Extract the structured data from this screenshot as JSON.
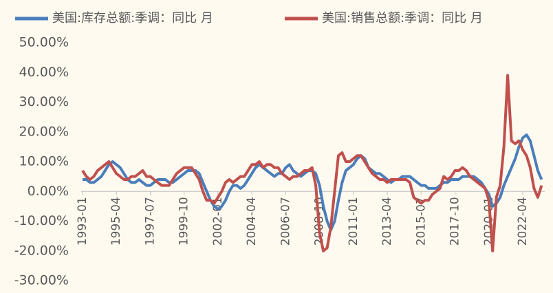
{
  "chart_data": {
    "type": "line",
    "x": [
      "1993-01",
      "1993-04",
      "1993-07",
      "1993-10",
      "1994-01",
      "1994-04",
      "1994-07",
      "1994-10",
      "1995-01",
      "1995-04",
      "1995-07",
      "1995-10",
      "1996-01",
      "1996-04",
      "1996-07",
      "1996-10",
      "1997-01",
      "1997-04",
      "1997-07",
      "1997-10",
      "1998-01",
      "1998-04",
      "1998-07",
      "1998-10",
      "1999-01",
      "1999-04",
      "1999-07",
      "1999-10",
      "2000-01",
      "2000-04",
      "2000-07",
      "2000-10",
      "2001-01",
      "2001-04",
      "2001-07",
      "2001-10",
      "2002-01",
      "2002-04",
      "2002-07",
      "2002-10",
      "2003-01",
      "2003-04",
      "2003-07",
      "2003-10",
      "2004-01",
      "2004-04",
      "2004-07",
      "2004-10",
      "2005-01",
      "2005-04",
      "2005-07",
      "2005-10",
      "2006-01",
      "2006-04",
      "2006-07",
      "2006-10",
      "2007-01",
      "2007-04",
      "2007-07",
      "2007-10",
      "2008-01",
      "2008-04",
      "2008-07",
      "2008-10",
      "2009-01",
      "2009-04",
      "2009-07",
      "2009-10",
      "2010-01",
      "2010-04",
      "2010-07",
      "2010-10",
      "2011-01",
      "2011-04",
      "2011-07",
      "2011-10",
      "2012-01",
      "2012-04",
      "2012-07",
      "2012-10",
      "2013-01",
      "2013-04",
      "2013-07",
      "2013-10",
      "2014-01",
      "2014-04",
      "2014-07",
      "2014-10",
      "2015-01",
      "2015-04",
      "2015-07",
      "2015-10",
      "2016-01",
      "2016-04",
      "2016-07",
      "2016-10",
      "2017-01",
      "2017-04",
      "2017-07",
      "2017-10",
      "2018-01",
      "2018-04",
      "2018-07",
      "2018-10",
      "2019-01",
      "2019-04",
      "2019-07",
      "2019-10",
      "2020-01",
      "2020-04",
      "2020-07",
      "2020-10",
      "2021-01",
      "2021-04",
      "2021-07",
      "2021-10",
      "2022-01",
      "2022-04",
      "2022-07",
      "2022-10",
      "2023-01",
      "2023-04",
      "2023-07"
    ],
    "series": [
      {
        "name": "美国:库存总额:季调：同比 月",
        "color": "#4a7ebb",
        "values": [
          4,
          4,
          3,
          3,
          4,
          5,
          7,
          9,
          10,
          9,
          8,
          6,
          4,
          3,
          3,
          4,
          3,
          2,
          2,
          3,
          4,
          4,
          4,
          3,
          3,
          4,
          5,
          6,
          7,
          7,
          7,
          6,
          3,
          0,
          -3,
          -5,
          -6,
          -5,
          -3,
          0,
          2,
          2,
          1,
          2,
          4,
          6,
          8,
          9,
          8,
          7,
          6,
          5,
          6,
          6,
          8,
          9,
          7,
          6,
          5,
          6,
          7,
          7,
          6,
          2,
          -5,
          -10,
          -13,
          -10,
          -3,
          3,
          7,
          8,
          9,
          11,
          12,
          11,
          8,
          7,
          6,
          6,
          5,
          4,
          3,
          4,
          4,
          5,
          5,
          5,
          4,
          3,
          2,
          2,
          1,
          1,
          1,
          2,
          3,
          3,
          4,
          4,
          4,
          5,
          5,
          5,
          5,
          4,
          3,
          1,
          -1,
          -5,
          -4,
          -2,
          2,
          5,
          8,
          11,
          15,
          18,
          19,
          17,
          12,
          7,
          4
        ]
      },
      {
        "name": "美国:销售总额:季调：同比 月",
        "color": "#c0504d",
        "values": [
          7,
          5,
          4,
          5,
          7,
          8,
          9,
          10,
          8,
          6,
          5,
          4,
          4,
          5,
          5,
          6,
          7,
          5,
          5,
          4,
          3,
          2,
          2,
          2,
          4,
          6,
          7,
          8,
          8,
          8,
          6,
          4,
          0,
          -3,
          -3,
          -4,
          -2,
          0,
          3,
          4,
          3,
          4,
          5,
          5,
          7,
          9,
          9,
          10,
          8,
          9,
          9,
          8,
          8,
          6,
          5,
          4,
          5,
          5,
          6,
          7,
          7,
          8,
          2,
          -14,
          -20,
          -19,
          -12,
          0,
          12,
          13,
          10,
          10,
          11,
          12,
          12,
          10,
          8,
          6,
          5,
          4,
          4,
          3,
          4,
          4,
          4,
          4,
          4,
          3,
          -2,
          -3,
          -4,
          -3,
          -3,
          -1,
          0,
          1,
          5,
          4,
          5,
          7,
          7,
          8,
          7,
          5,
          4,
          3,
          2,
          1,
          -3,
          -20,
          -2,
          2,
          15,
          39,
          17,
          16,
          17,
          14,
          12,
          8,
          1,
          -2,
          2
        ]
      }
    ],
    "ylim": [
      -30,
      50
    ],
    "yticks": [
      {
        "value": 50,
        "label": "50.00%"
      },
      {
        "value": 40,
        "label": "40.00%"
      },
      {
        "value": 30,
        "label": "30.00%"
      },
      {
        "value": 20,
        "label": "20.00%"
      },
      {
        "value": 10,
        "label": "10.00%"
      },
      {
        "value": 0,
        "label": "0.00%"
      },
      {
        "value": -10,
        "label": "-10.00%"
      },
      {
        "value": -20,
        "label": "-20.00%"
      },
      {
        "value": -30,
        "label": "-30.00%"
      }
    ],
    "xticks": [
      "1993-01",
      "1995-04",
      "1997-07",
      "1999-10",
      "2002-01",
      "2004-04",
      "2006-07",
      "2008-10",
      "2011-01",
      "2013-04",
      "2015-07",
      "2017-10",
      "2020-01",
      "2022-04"
    ]
  }
}
